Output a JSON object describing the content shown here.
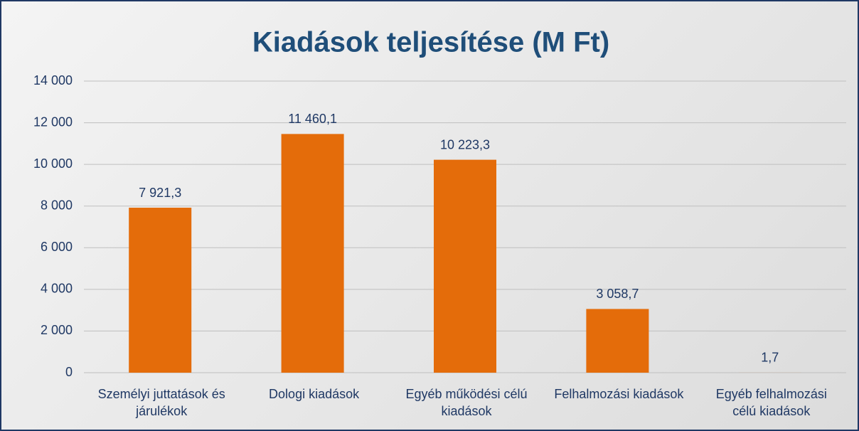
{
  "chart_data": {
    "type": "bar",
    "title": "Kiadások teljesítése (M Ft)",
    "categories": [
      "Személyi juttatások és járulékok",
      "Dologi kiadások",
      "Egyéb működési célú kiadások",
      "Felhalmozási kiadások",
      "Egyéb felhalmozási célú kiadások"
    ],
    "values": [
      7921.3,
      11460.1,
      10223.3,
      3058.7,
      1.7
    ],
    "value_labels": [
      "7 921,3",
      "11 460,1",
      "10 223,3",
      "3 058,7",
      "1,7"
    ],
    "color": "#e46c0a",
    "ylim": [
      0,
      14000
    ],
    "yticks": [
      0,
      {
        "value": 2000,
        "label": "2 000"
      },
      {
        "value": 4000,
        "label": "4 000"
      },
      {
        "value": 6000,
        "label": "6 000"
      },
      {
        "value": 8000,
        "label": "8 000"
      },
      {
        "value": 10000,
        "label": "10 000"
      },
      {
        "value": 12000,
        "label": "12 000"
      },
      {
        "value": 14000,
        "label": "14 000"
      }
    ],
    "grid": true
  }
}
